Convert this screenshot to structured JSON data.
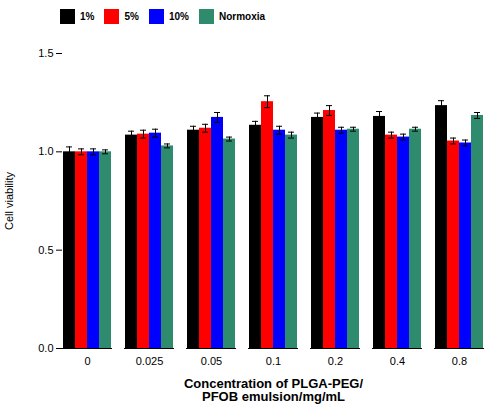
{
  "chart_data": {
    "type": "bar",
    "categories": [
      "0",
      "0.025",
      "0.05",
      "0.1",
      "0.2",
      "0.4",
      "0.8"
    ],
    "series": [
      {
        "name": "1%",
        "color": "#000000",
        "values": [
          1.0,
          1.085,
          1.11,
          1.135,
          1.175,
          1.18,
          1.235
        ],
        "errors": [
          0.025,
          0.02,
          0.02,
          0.02,
          0.022,
          0.025,
          0.025
        ]
      },
      {
        "name": "5%",
        "color": "#ff0000",
        "values": [
          1.0,
          1.09,
          1.12,
          1.255,
          1.21,
          1.085,
          1.055
        ],
        "errors": [
          0.015,
          0.02,
          0.02,
          0.03,
          0.025,
          0.015,
          0.015
        ]
      },
      {
        "name": "10%",
        "color": "#0000ff",
        "values": [
          1.0,
          1.095,
          1.175,
          1.11,
          1.11,
          1.075,
          1.045
        ],
        "errors": [
          0.015,
          0.02,
          0.025,
          0.02,
          0.015,
          0.015,
          0.015
        ]
      },
      {
        "name": "Normoxia",
        "color": "#2e8b6e",
        "values": [
          1.0,
          1.03,
          1.065,
          1.085,
          1.115,
          1.115,
          1.185
        ],
        "errors": [
          0.01,
          0.01,
          0.01,
          0.015,
          0.01,
          0.01,
          0.015
        ]
      }
    ],
    "xlabel": "Concentration of PLGA-PEG/\nPFOB emulsion/mg/mL",
    "ylabel": "Cell viability",
    "ylim": [
      0.0,
      1.5
    ],
    "yticks": [
      {
        "value": 0.0,
        "label": "0.0"
      },
      0.5,
      {
        "value": 1.0,
        "label": "1.0"
      },
      {
        "value": 1.5,
        "label": "1.5"
      }
    ],
    "legend": "upper left"
  }
}
